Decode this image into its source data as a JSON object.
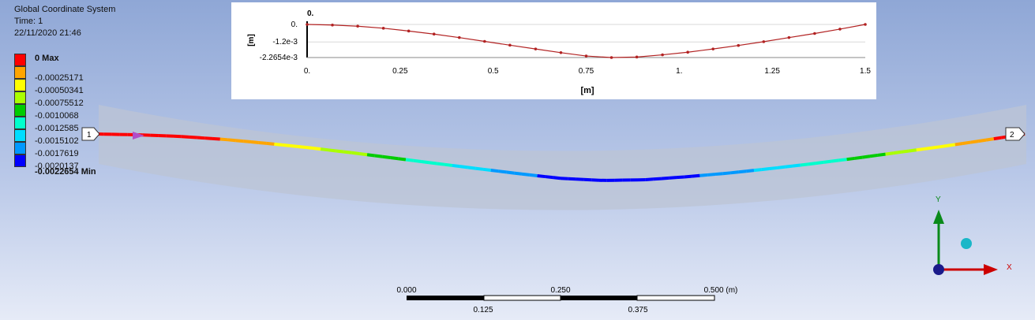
{
  "header": {
    "system": "Global Coordinate System",
    "time": "Time: 1",
    "date": "22/11/2020 21:46"
  },
  "legend": {
    "max_label": "0 Max",
    "min_label": "-0.0022654 Min",
    "values": [
      "-0.00025171",
      "-0.00050341",
      "-0.00075512",
      "-0.0010068",
      "-0.0012585",
      "-0.0015102",
      "-0.0017619",
      "-0.0020137"
    ],
    "colors": [
      "#ff0000",
      "#ffa500",
      "#ffff00",
      "#aaff00",
      "#00cc00",
      "#00ffcc",
      "#00ddff",
      "#0099ff",
      "#0000ff"
    ]
  },
  "graph": {
    "y_unit": "[m]",
    "x_unit": "[m]",
    "y_ticks": [
      "0.",
      "-1.2e-3",
      "-2.2654e-3"
    ],
    "top_label": "0.",
    "x_ticks": [
      "0.",
      "0.25",
      "0.5",
      "0.75",
      "1.",
      "1.25",
      "1.5"
    ]
  },
  "chart_data": {
    "type": "line",
    "xlabel": "[m]",
    "ylabel": "[m]",
    "xlim": [
      0,
      1.5
    ],
    "ylim": [
      -0.0022654,
      0
    ],
    "series": [
      {
        "x": [
          0,
          0.068,
          0.136,
          0.205,
          0.273,
          0.341,
          0.409,
          0.477,
          0.545,
          0.614,
          0.682,
          0.75,
          0.818,
          0.886,
          0.955,
          1.023,
          1.091,
          1.159,
          1.227,
          1.295,
          1.364,
          1.432,
          1.5
        ],
        "values": [
          0,
          -4e-05,
          -0.00012,
          -0.00026,
          -0.00045,
          -0.00066,
          -0.0009,
          -0.00116,
          -0.00142,
          -0.00168,
          -0.00193,
          -0.00216,
          -0.002265,
          -0.00223,
          -0.00208,
          -0.0019,
          -0.00168,
          -0.00144,
          -0.00118,
          -0.0009,
          -0.00062,
          -0.00032,
          0
        ]
      }
    ]
  },
  "beam": {
    "node1": "1",
    "node2": "2"
  },
  "scale": {
    "labels_top": [
      "0.000",
      "0.250",
      "0.500 (m)"
    ],
    "labels_bottom": [
      "0.125",
      "0.375"
    ]
  },
  "triad": {
    "y": "Y",
    "x": "X"
  }
}
